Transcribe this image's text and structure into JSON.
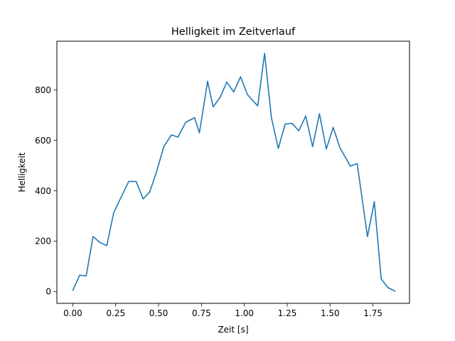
{
  "chart_data": {
    "type": "line",
    "title": "Helligkeit im Zeitverlauf",
    "xlabel": "Zeit [s]",
    "ylabel": "Helligkeit",
    "xlim": [
      -0.093,
      1.963
    ],
    "ylim": [
      -47,
      994
    ],
    "grid": false,
    "legend": "none",
    "x_ticks": [
      0.0,
      0.25,
      0.5,
      0.75,
      1.0,
      1.25,
      1.5,
      1.75
    ],
    "x_tick_labels": [
      "0.00",
      "0.25",
      "0.50",
      "0.75",
      "1.00",
      "1.25",
      "1.50",
      "1.75"
    ],
    "y_ticks": [
      0,
      200,
      400,
      600,
      800
    ],
    "y_tick_labels": [
      "0",
      "200",
      "400",
      "600",
      "800"
    ],
    "series": [
      {
        "color": "#1f77b4",
        "x": [
          0.0,
          0.04,
          0.078,
          0.118,
          0.158,
          0.198,
          0.238,
          0.278,
          0.326,
          0.369,
          0.41,
          0.448,
          0.488,
          0.53,
          0.575,
          0.613,
          0.658,
          0.71,
          0.738,
          0.786,
          0.818,
          0.858,
          0.898,
          0.938,
          0.978,
          1.018,
          1.078,
          1.118,
          1.158,
          1.198,
          1.238,
          1.278,
          1.318,
          1.358,
          1.398,
          1.438,
          1.478,
          1.518,
          1.558,
          1.618,
          1.658,
          1.718,
          1.758,
          1.798,
          1.838,
          1.878
        ],
        "values": [
          5,
          65,
          62,
          218,
          195,
          182,
          312,
          370,
          437,
          437,
          368,
          395,
          475,
          575,
          622,
          613,
          672,
          690,
          630,
          835,
          733,
          770,
          832,
          792,
          853,
          782,
          737,
          946,
          690,
          568,
          665,
          668,
          638,
          697,
          575,
          706,
          566,
          652,
          570,
          498,
          508,
          218,
          357,
          50,
          15,
          2
        ]
      }
    ]
  }
}
